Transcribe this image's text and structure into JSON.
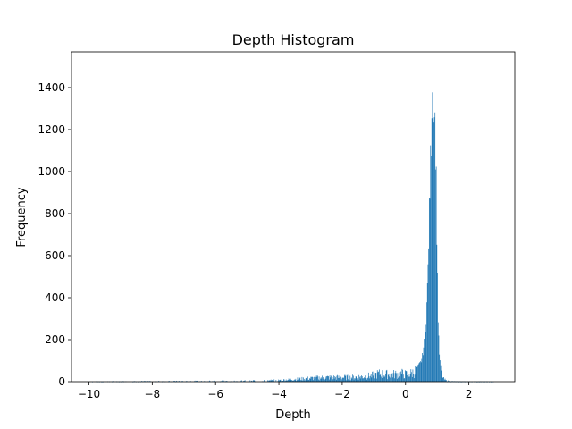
{
  "chart_data": {
    "type": "bar",
    "title": "Depth Histogram",
    "xlabel": "Depth",
    "ylabel": "Frequency",
    "xlim": [
      -10.55,
      3.45
    ],
    "ylim": [
      0,
      1570
    ],
    "x_ticks": [
      {
        "value": -10,
        "label": "−10"
      },
      {
        "value": -8,
        "label": "−8"
      },
      {
        "value": -6,
        "label": "−6"
      },
      {
        "value": -4,
        "label": "−4"
      },
      {
        "value": -2,
        "label": "−2"
      },
      {
        "value": 0,
        "label": "0"
      },
      {
        "value": 2,
        "label": "2"
      }
    ],
    "y_ticks": [
      {
        "value": 0,
        "label": "0"
      },
      {
        "value": 200,
        "label": "200"
      },
      {
        "value": 400,
        "label": "400"
      },
      {
        "value": 600,
        "label": "600"
      },
      {
        "value": 800,
        "label": "800"
      },
      {
        "value": 1000,
        "label": "1000"
      },
      {
        "value": 1200,
        "label": "1200"
      },
      {
        "value": 1400,
        "label": "1400"
      }
    ],
    "grid": false,
    "bar_color": "#1f77b4",
    "bins": {
      "x": [
        -10.0,
        -9.0,
        -8.0,
        -7.0,
        -6.0,
        -5.5,
        -5.0,
        -4.5,
        -4.0,
        -3.75,
        -3.5,
        -3.25,
        -3.0,
        -2.75,
        -2.5,
        -2.25,
        -2.0,
        -1.75,
        -1.5,
        -1.25,
        -1.0,
        -0.9,
        -0.8,
        -0.7,
        -0.6,
        -0.5,
        -0.4,
        -0.3,
        -0.2,
        -0.1,
        0.0,
        0.1,
        0.2,
        0.3,
        0.4,
        0.5,
        0.55,
        0.6,
        0.65,
        0.7,
        0.75,
        0.8,
        0.85,
        0.88,
        0.91,
        0.94,
        0.97,
        1.0,
        1.03,
        1.06,
        1.1,
        1.15,
        1.2,
        1.3,
        1.5,
        2.0,
        2.5,
        3.0
      ],
      "y": [
        1,
        2,
        3,
        3,
        4,
        4,
        5,
        6,
        8,
        10,
        13,
        15,
        18,
        20,
        22,
        22,
        22,
        22,
        25,
        28,
        33,
        40,
        42,
        40,
        38,
        40,
        38,
        40,
        40,
        42,
        38,
        40,
        45,
        55,
        75,
        100,
        140,
        200,
        300,
        480,
        800,
        1100,
        1480,
        1400,
        1300,
        1200,
        950,
        600,
        300,
        150,
        80,
        40,
        15,
        5,
        2,
        1,
        1,
        0
      ]
    }
  }
}
